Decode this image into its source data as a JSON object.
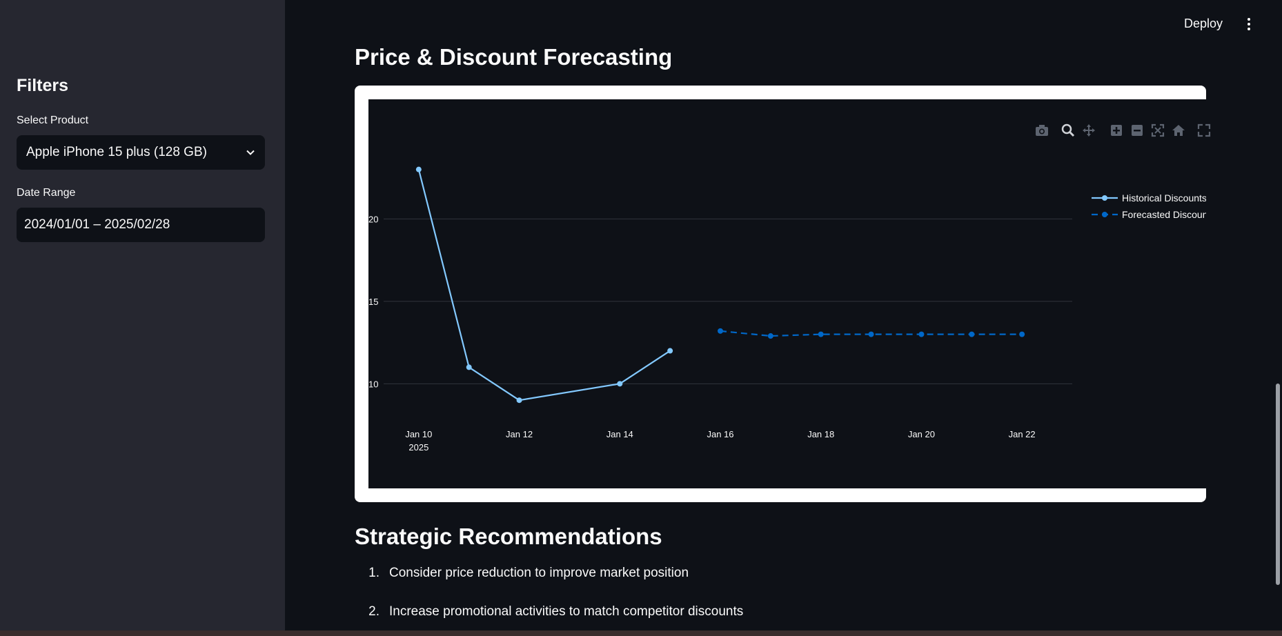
{
  "sidebar": {
    "title": "Filters",
    "product_label": "Select Product",
    "product_value": "Apple iPhone 15 plus (128 GB)",
    "date_label": "Date Range",
    "date_value": "2024/01/01 – 2025/02/28"
  },
  "header": {
    "deploy_label": "Deploy"
  },
  "main": {
    "forecast_title": "Price & Discount Forecasting",
    "recs_title": "Strategic Recommendations",
    "recommendations": [
      {
        "num": "1.",
        "text": "Consider price reduction to improve market position"
      },
      {
        "num": "2.",
        "text": "Increase promotional activities to match competitor discounts"
      }
    ]
  },
  "modebar": {
    "icons": [
      "camera-icon",
      "zoom-icon",
      "pan-icon",
      "zoom-in-icon",
      "zoom-out-icon",
      "autoscale-icon",
      "home-icon",
      "fullscreen-icon"
    ]
  },
  "chart_data": {
    "type": "line",
    "x_ticks": [
      "Jan 10",
      "Jan 12",
      "Jan 14",
      "Jan 16",
      "Jan 18",
      "Jan 20",
      "Jan 22"
    ],
    "x_year_label": "2025",
    "y_ticks": [
      10,
      15,
      20
    ],
    "xlim": [
      "2025-01-09",
      "2025-01-23"
    ],
    "ylim": [
      7,
      26
    ],
    "grid": true,
    "legend_position": "top-right",
    "series": [
      {
        "name": "Historical Discounts",
        "color": "#83c9ff",
        "dash": "solid",
        "x": [
          "2025-01-10",
          "2025-01-11",
          "2025-01-12",
          "2025-01-14",
          "2025-01-15"
        ],
        "y": [
          23.0,
          11.0,
          9.0,
          10.0,
          12.0
        ]
      },
      {
        "name": "Forecasted Discounts",
        "color": "#0068c9",
        "dash": "dash",
        "x": [
          "2025-01-16",
          "2025-01-17",
          "2025-01-18",
          "2025-01-19",
          "2025-01-20",
          "2025-01-21",
          "2025-01-22"
        ],
        "y": [
          13.2,
          12.9,
          13.0,
          13.0,
          13.0,
          13.0,
          13.0
        ]
      }
    ]
  }
}
